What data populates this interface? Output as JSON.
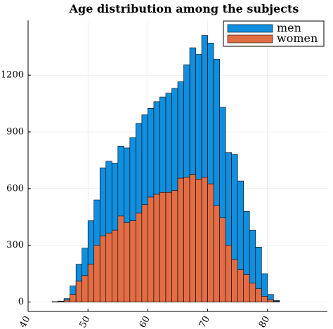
{
  "chart_data": {
    "type": "bar",
    "stacking": "overlay",
    "title": "Age distribution among the subjects",
    "xlabel": "",
    "ylabel": "",
    "xlim": [
      40,
      90
    ],
    "ylim": [
      -50,
      1490
    ],
    "xticks": [
      40,
      50,
      60,
      70,
      80
    ],
    "yticks": [
      0,
      300,
      600,
      900,
      1200
    ],
    "xtick_labels": [
      "40",
      "50",
      "60",
      "70",
      "80"
    ],
    "ytick_labels": [
      "0",
      "300",
      "600",
      "900",
      "1200"
    ],
    "bin_width": 1,
    "bin_starts": [
      44,
      45,
      46,
      47,
      48,
      49,
      50,
      51,
      52,
      53,
      54,
      55,
      56,
      57,
      58,
      59,
      60,
      61,
      62,
      63,
      64,
      65,
      66,
      67,
      68,
      69,
      70,
      71,
      72,
      73,
      74,
      75,
      76,
      77,
      78,
      79,
      80,
      81,
      82
    ],
    "grid": true,
    "legend_position": "top-right",
    "series": [
      {
        "name": "men",
        "color": "#0f8fde",
        "values": [
          2,
          5,
          18,
          85,
          200,
          285,
          430,
          540,
          710,
          745,
          735,
          825,
          815,
          870,
          945,
          990,
          1025,
          1060,
          1085,
          1105,
          1130,
          1165,
          1255,
          1345,
          1310,
          1410,
          1370,
          1285,
          1030,
          790,
          780,
          640,
          480,
          380,
          290,
          150,
          40,
          8,
          0
        ]
      },
      {
        "name": "women",
        "color": "#e26d45",
        "values": [
          1,
          3,
          10,
          40,
          110,
          140,
          200,
          300,
          350,
          365,
          380,
          455,
          420,
          430,
          470,
          515,
          555,
          570,
          580,
          580,
          590,
          655,
          660,
          675,
          650,
          660,
          625,
          510,
          445,
          300,
          225,
          170,
          145,
          100,
          70,
          30,
          12,
          3,
          0
        ]
      }
    ]
  }
}
